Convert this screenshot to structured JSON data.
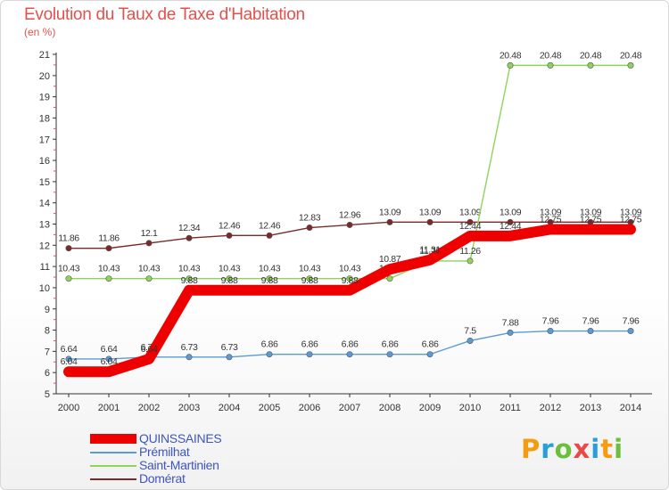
{
  "title": "Evolution du Taux de Taxe d'Habitation",
  "unit": "(en %)",
  "logo": {
    "text": "Proxiti",
    "colors": [
      "#f39c12",
      "#2a9ed8",
      "#6bbf3a",
      "#e84a4a",
      "#2a9ed8",
      "#f39c12",
      "#6bbf3a"
    ]
  },
  "chart_data": {
    "type": "line",
    "title": "Evolution du Taux de Taxe d'Habitation",
    "ylabel": "(en %)",
    "xlabel": "",
    "ylim": [
      5,
      21
    ],
    "yticks": [
      5,
      6,
      7,
      8,
      9,
      10,
      11,
      12,
      13,
      14,
      15,
      16,
      17,
      18,
      19,
      20,
      21
    ],
    "x": [
      "2000",
      "2001",
      "2002",
      "2003",
      "2004",
      "2005",
      "2006",
      "2007",
      "2008",
      "2009",
      "2010",
      "2011",
      "2012",
      "2013",
      "2014"
    ],
    "grid": false,
    "legend_position": "bottom-left",
    "series": [
      {
        "name": "Domérat",
        "color": "#7a2a2a",
        "values": [
          11.86,
          11.86,
          12.1,
          12.34,
          12.46,
          12.46,
          12.83,
          12.96,
          13.09,
          13.09,
          13.09,
          13.09,
          13.09,
          13.09,
          13.09
        ],
        "labels": [
          "11.86",
          "11.86",
          "12.1",
          "12.34",
          "12.46",
          "12.46",
          "12.83",
          "12.96",
          "13.09",
          "13.09",
          "13.09",
          "13.09",
          "13.09",
          "13.09",
          "13.09"
        ]
      },
      {
        "name": "Saint-Martinien",
        "color": "#8ed45a",
        "values": [
          10.43,
          10.43,
          10.43,
          10.43,
          10.43,
          10.43,
          10.43,
          10.43,
          10.43,
          11.26,
          11.26,
          20.48,
          20.48,
          20.48,
          20.48
        ],
        "labels": [
          "10.43",
          "10.43",
          "10.43",
          "10.43",
          "10.43",
          "10.43",
          "10.43",
          "10.43",
          "10.43",
          "11.26",
          "11.26",
          "20.48",
          "20.48",
          "20.48",
          "20.48"
        ]
      },
      {
        "name": "Prémilhat",
        "color": "#5b9bd5",
        "values": [
          6.64,
          6.64,
          6.73,
          6.73,
          6.73,
          6.86,
          6.86,
          6.86,
          6.86,
          6.86,
          7.5,
          7.88,
          7.96,
          7.96,
          7.96
        ],
        "labels": [
          "6.64",
          "6.64",
          "6.73",
          "6.73",
          "6.73",
          "6.86",
          "6.86",
          "6.86",
          "6.86",
          "6.86",
          "7.5",
          "7.88",
          "7.96",
          "7.96",
          "7.96"
        ]
      },
      {
        "name": "QUINSSAINES",
        "color": "#ee0000",
        "values": [
          6.04,
          6.04,
          6.64,
          9.88,
          9.88,
          9.88,
          9.88,
          9.88,
          10.87,
          11.31,
          12.44,
          12.44,
          12.75,
          12.75,
          12.75
        ],
        "labels": [
          "6.04",
          "6.04",
          "6.64",
          "9.88",
          "9.88",
          "9.88",
          "9.88",
          "9.88",
          "10.87",
          "11.31",
          "12.44",
          "12.44",
          "12.75",
          "12.75",
          "12.75"
        ]
      }
    ]
  }
}
